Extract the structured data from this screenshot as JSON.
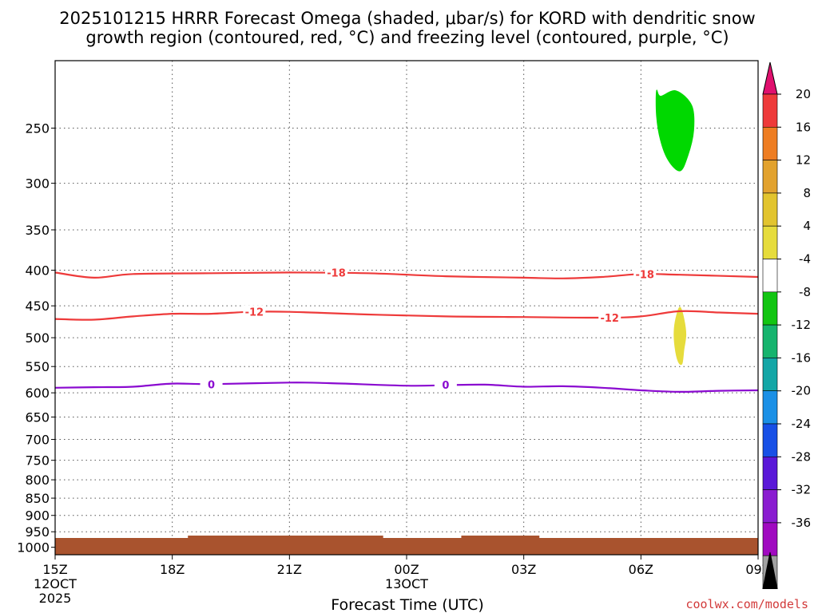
{
  "chart_data": {
    "type": "contour",
    "title_lines": [
      "2025101215 HRRR Forecast Omega (shaded, μbar/s) for KORD with dendritic snow",
      "growth region (contoured, red, °C) and freezing level (contoured, purple, °C)"
    ],
    "xlabel": "Forecast Time (UTC)",
    "x_ticks": [
      {
        "h": 0,
        "lines": [
          "15Z",
          "12OCT",
          "2025"
        ]
      },
      {
        "h": 3,
        "lines": [
          "18Z"
        ]
      },
      {
        "h": 6,
        "lines": [
          "21Z"
        ]
      },
      {
        "h": 9,
        "lines": [
          "00Z",
          "13OCT"
        ]
      },
      {
        "h": 12,
        "lines": [
          "03Z"
        ]
      },
      {
        "h": 15,
        "lines": [
          "06Z"
        ]
      },
      {
        "h": 18,
        "lines": [
          "09Z"
        ]
      }
    ],
    "xlim": [
      0,
      18
    ],
    "y_scale": "log",
    "ylim": [
      1025,
      200
    ],
    "y_ticks": [
      250,
      300,
      350,
      400,
      450,
      500,
      550,
      600,
      650,
      700,
      750,
      800,
      850,
      900,
      950,
      1000
    ],
    "grid": true,
    "colorbar": {
      "ticks": [
        "20",
        "16",
        "12",
        "8",
        "4",
        "-4",
        "-8",
        "-12",
        "-16",
        "-20",
        "-24",
        "-28",
        "-32",
        "-36"
      ],
      "colors": [
        "#e0106e",
        "#ee3a3a",
        "#ee7d22",
        "#e2a22e",
        "#e2c42e",
        "#e6dc3c",
        "#ffffff",
        "#12c512",
        "#16b46e",
        "#13a6a6",
        "#1b90e6",
        "#1850e6",
        "#5a18d8",
        "#8a1cd0",
        "#a00ac0",
        "#a0a0a0",
        "#000000"
      ]
    },
    "contours": [
      {
        "name": "-18",
        "color": "#ee3a3a",
        "points": [
          [
            0,
            403
          ],
          [
            1,
            410
          ],
          [
            2,
            405
          ],
          [
            4,
            404
          ],
          [
            6,
            403
          ],
          [
            8,
            404
          ],
          [
            10,
            408
          ],
          [
            12,
            410
          ],
          [
            13,
            411
          ],
          [
            14,
            409
          ],
          [
            15,
            405
          ],
          [
            16,
            406
          ],
          [
            18,
            409
          ]
        ],
        "labels": [
          {
            "h": 7.2,
            "p": 403
          },
          {
            "h": 15.1,
            "p": 405
          }
        ]
      },
      {
        "name": "-12",
        "color": "#ee3a3a",
        "points": [
          [
            0,
            470
          ],
          [
            1,
            471
          ],
          [
            2,
            466
          ],
          [
            3,
            462
          ],
          [
            4,
            462
          ],
          [
            5,
            459
          ],
          [
            6,
            459
          ],
          [
            8,
            463
          ],
          [
            10,
            466
          ],
          [
            12,
            467
          ],
          [
            14,
            468
          ],
          [
            15,
            466
          ],
          [
            16,
            458
          ],
          [
            17,
            460
          ],
          [
            18,
            462
          ]
        ],
        "labels": [
          {
            "h": 5.1,
            "p": 459
          },
          {
            "h": 14.2,
            "p": 468
          }
        ]
      },
      {
        "name": "0",
        "color": "#8a0ad0",
        "points": [
          [
            0,
            590
          ],
          [
            1,
            589
          ],
          [
            2,
            588
          ],
          [
            3,
            582
          ],
          [
            4,
            583
          ],
          [
            6,
            580
          ],
          [
            7,
            581
          ],
          [
            9,
            586
          ],
          [
            10,
            585
          ],
          [
            11,
            584
          ],
          [
            12,
            588
          ],
          [
            13,
            587
          ],
          [
            14,
            590
          ],
          [
            15,
            595
          ],
          [
            16,
            598
          ],
          [
            17,
            596
          ],
          [
            18,
            595
          ]
        ],
        "labels": [
          {
            "h": 4.0,
            "p": 583
          },
          {
            "h": 10.0,
            "p": 584
          }
        ]
      }
    ],
    "shaded_regions": [
      {
        "name": "omega -4 to -8",
        "color": "#00d800",
        "points": [
          [
            15.4,
            221
          ],
          [
            15.5,
            225
          ],
          [
            15.9,
            221
          ],
          [
            16.3,
            232
          ],
          [
            16.35,
            252
          ],
          [
            16.2,
            274
          ],
          [
            16.0,
            288
          ],
          [
            15.7,
            278
          ],
          [
            15.5,
            260
          ],
          [
            15.4,
            240
          ]
        ]
      },
      {
        "name": "omega 4 to 8",
        "color": "#e6dc3c",
        "points": [
          [
            16.0,
            452
          ],
          [
            16.1,
            470
          ],
          [
            16.15,
            495
          ],
          [
            16.1,
            520
          ],
          [
            16.05,
            545
          ],
          [
            15.95,
            540
          ],
          [
            15.87,
            515
          ],
          [
            15.85,
            490
          ],
          [
            15.9,
            468
          ]
        ]
      }
    ],
    "surface": {
      "color": "#a9532e"
    }
  },
  "credit": "coolwx.com/models"
}
